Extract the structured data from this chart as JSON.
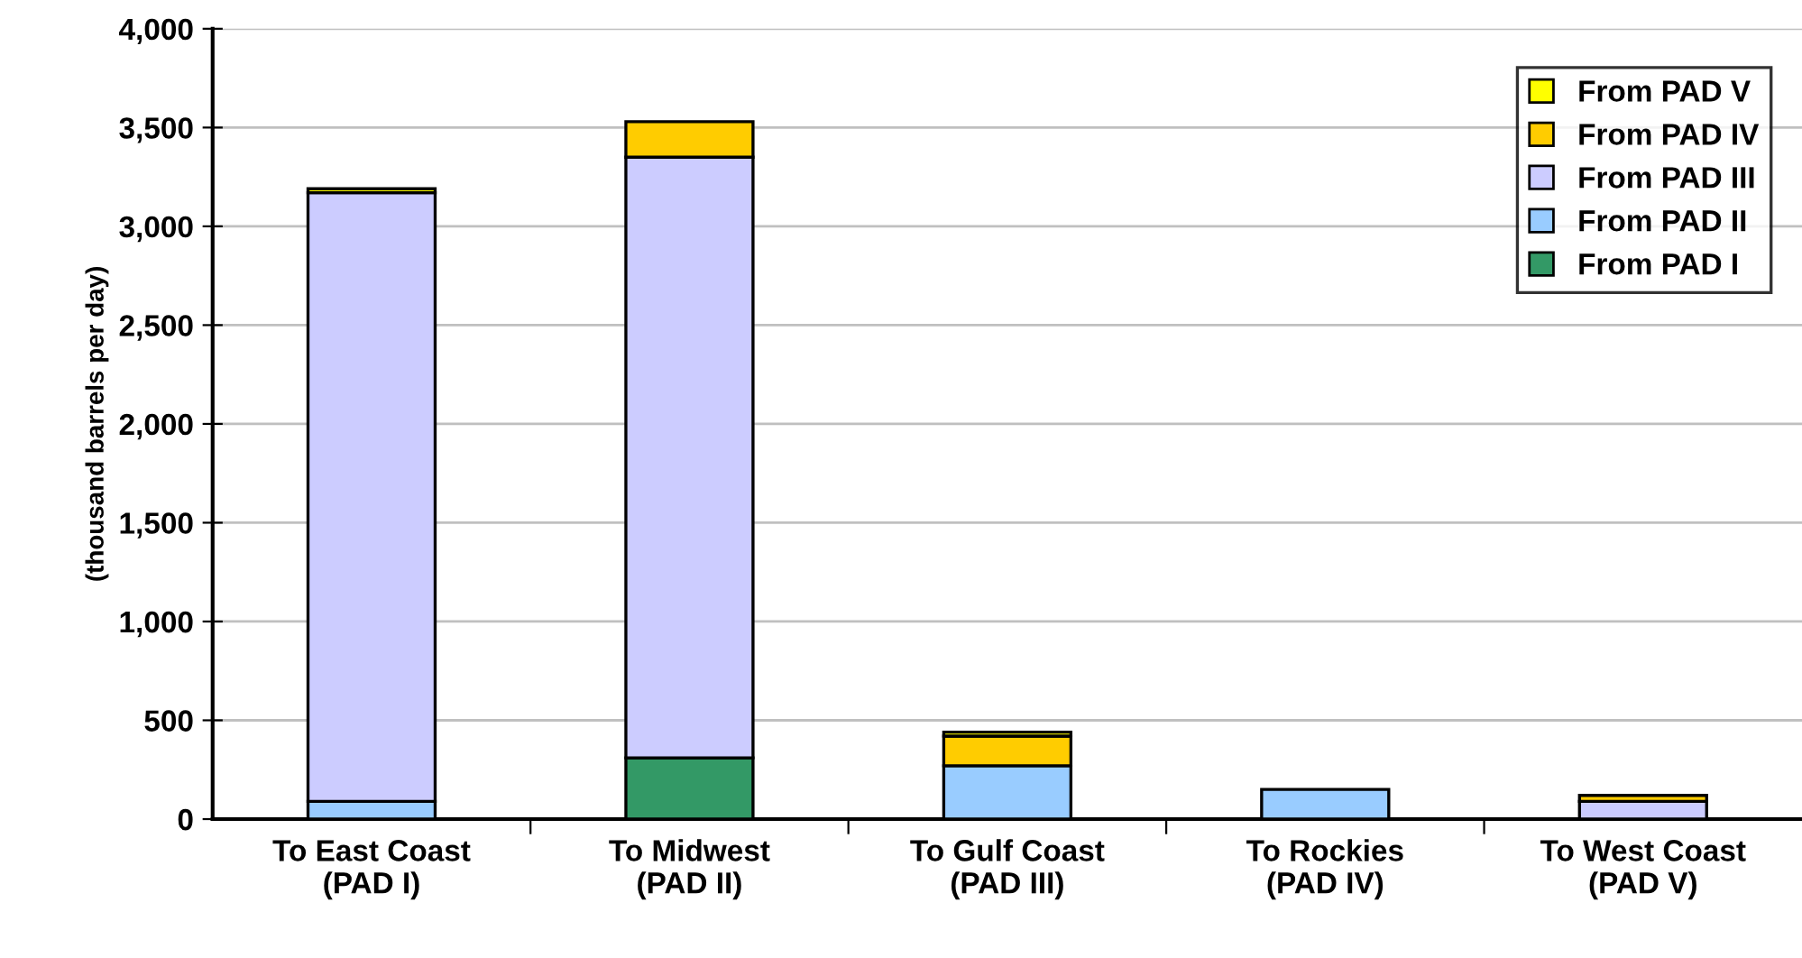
{
  "chart_data": {
    "type": "bar",
    "stacked": true,
    "ylabel": "(thousand barrels per day)",
    "categories": [
      "To East Coast\n(PAD I)",
      "To Midwest\n(PAD II)",
      "To Gulf Coast\n(PAD III)",
      "To Rockies\n(PAD IV)",
      "To West Coast\n(PAD V)"
    ],
    "series": [
      {
        "name": "From PAD I",
        "color": "#339966",
        "values": [
          0,
          310,
          null,
          0,
          0
        ]
      },
      {
        "name": "From PAD II",
        "color": "#99ccff",
        "values": [
          90,
          0,
          270,
          150,
          0
        ]
      },
      {
        "name": "From PAD III",
        "color": "#ccccff",
        "values": [
          3080,
          3040,
          0,
          0,
          90
        ]
      },
      {
        "name": "From PAD IV",
        "color": "#ffcc00",
        "values": [
          0,
          180,
          150,
          0,
          30
        ]
      },
      {
        "name": "From PAD V",
        "color": "#ffff00",
        "values": [
          20,
          0,
          20,
          0,
          0
        ]
      }
    ],
    "ylim": [
      0,
      4000
    ],
    "yticks": [
      {
        "value": 0,
        "label": "0"
      },
      {
        "value": 500,
        "label": "500"
      },
      {
        "value": 1000,
        "label": "1,000"
      },
      {
        "value": 1500,
        "label": "1,500"
      },
      {
        "value": 2000,
        "label": "2,000"
      },
      {
        "value": 2500,
        "label": "2,500"
      },
      {
        "value": 3000,
        "label": "3,000"
      },
      {
        "value": 3500,
        "label": "3,500"
      },
      {
        "value": 4000,
        "label": "4,000"
      }
    ],
    "grid": "y",
    "legend": "top right"
  }
}
